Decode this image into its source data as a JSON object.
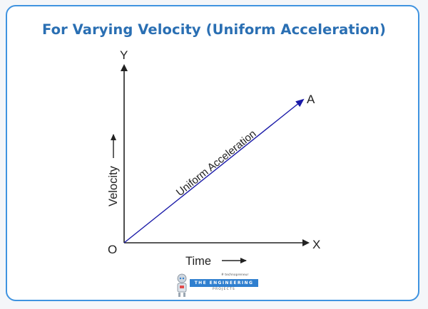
{
  "title": "For Varying Velocity (Uniform Acceleration)",
  "diagram": {
    "y_axis_letter": "Y",
    "x_axis_letter": "X",
    "origin_label": "O",
    "end_label": "A",
    "x_axis_label": "Time",
    "y_axis_label": "Velocity",
    "line_label": "Uniform Acceleration",
    "line_color": "#1a1aa8",
    "axis_color": "#222222"
  },
  "logo": {
    "tagline": "# technopreneur",
    "main": "THE ENGINEERING",
    "sub": "PROJECTS",
    "icon": "robot-icon"
  }
}
